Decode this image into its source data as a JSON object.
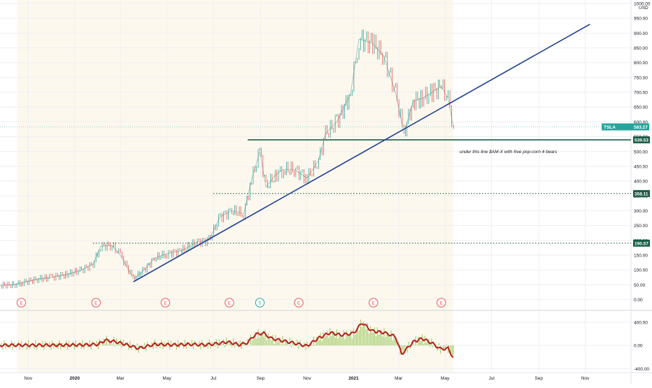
{
  "chart_data": {
    "type": "line",
    "symbol": "TSLA",
    "currency": "USD",
    "price_axis": {
      "range": [
        -20,
        1000
      ],
      "ticks": [
        0,
        50,
        100,
        150,
        200,
        250,
        300,
        350,
        400,
        450,
        500,
        550,
        600,
        650,
        700,
        750,
        800,
        850,
        900,
        950,
        1000
      ],
      "tick_labels": [
        "0.00",
        "50.00",
        "100.00",
        "150.00",
        "200.00",
        "250.00",
        "300.00",
        "350.00",
        "400.00",
        "450.00",
        "500.00",
        "550.00",
        "600.00",
        "650.00",
        "700.00",
        "750.00",
        "800.00",
        "850.00",
        "900.00",
        "950.00",
        "1000.00"
      ]
    },
    "time_axis": {
      "labels": [
        "Nov",
        "2020",
        "Mar",
        "May",
        "Jul",
        "Sep",
        "Nov",
        "2021",
        "Mar",
        "May",
        "Jul",
        "Sep",
        "Nov"
      ],
      "label_dates": [
        "2019-11-01",
        "2020-01-01",
        "2020-03-01",
        "2020-05-01",
        "2020-07-01",
        "2020-09-01",
        "2020-11-01",
        "2021-01-01",
        "2021-03-01",
        "2021-05-01",
        "2021-07-01",
        "2021-09-01",
        "2021-11-01"
      ],
      "range": [
        "2019-09-25",
        "2021-12-31"
      ]
    },
    "price_series": {
      "name": "TSLA",
      "dates": [
        "2019-09-25",
        "2019-10-15",
        "2019-10-25",
        "2019-11-15",
        "2019-12-01",
        "2019-12-20",
        "2020-01-10",
        "2020-01-25",
        "2020-02-04",
        "2020-02-19",
        "2020-03-01",
        "2020-03-18",
        "2020-04-01",
        "2020-04-15",
        "2020-05-01",
        "2020-05-20",
        "2020-06-10",
        "2020-06-25",
        "2020-07-10",
        "2020-07-25",
        "2020-08-10",
        "2020-08-20",
        "2020-08-31",
        "2020-09-08",
        "2020-09-20",
        "2020-10-01",
        "2020-10-15",
        "2020-11-01",
        "2020-11-16",
        "2020-11-25",
        "2020-12-10",
        "2020-12-28",
        "2021-01-08",
        "2021-01-26",
        "2021-02-10",
        "2021-02-25",
        "2021-03-08",
        "2021-03-20",
        "2021-04-01",
        "2021-04-14",
        "2021-04-26",
        "2021-05-05",
        "2021-05-12"
      ],
      "values": [
        48,
        51,
        58,
        70,
        75,
        84,
        100,
        120,
        180,
        183,
        150,
        70,
        100,
        140,
        155,
        165,
        195,
        200,
        280,
        300,
        290,
        405,
        500,
        380,
        420,
        440,
        440,
        410,
        470,
        560,
        600,
        695,
        880,
        865,
        820,
        700,
        560,
        670,
        680,
        700,
        720,
        680,
        580
      ]
    },
    "current_price": {
      "label": "TSLA",
      "value": "583.27"
    },
    "horizontal_levels": [
      {
        "value": 539.53,
        "label": "539.53",
        "style": "solid",
        "color": "#1b5e46",
        "start_date": "2020-08-15"
      },
      {
        "value": 358.11,
        "label": "358.11",
        "style": "dotted",
        "color": "#1b5e46",
        "start_date": "2020-07-01"
      },
      {
        "value": 190.57,
        "label": "190.57",
        "style": "dotted",
        "color": "#1b5e46",
        "start_date": "2020-01-25"
      }
    ],
    "trendline": {
      "color": "#1c3f94",
      "points": [
        [
          "2020-03-18",
          60
        ],
        [
          "2021-11-07",
          930
        ]
      ]
    },
    "annotation": {
      "text": "under this line $AM-X with free pop-corn 4 bears",
      "date": "2021-05-20",
      "value": 495
    },
    "earnings_events": [
      {
        "date": "2019-10-23",
        "label": "E"
      },
      {
        "date": "2020-01-29",
        "label": "E"
      },
      {
        "date": "2020-04-29",
        "label": "E"
      },
      {
        "date": "2020-07-22",
        "label": "E"
      },
      {
        "date": "2020-08-31",
        "label": "S"
      },
      {
        "date": "2020-10-21",
        "label": "E"
      },
      {
        "date": "2021-01-27",
        "label": "E"
      },
      {
        "date": "2021-04-26",
        "label": "E"
      }
    ],
    "oscillator": {
      "range": [
        -430,
        530
      ],
      "ticks": [
        -400,
        0,
        400
      ],
      "tick_labels": [
        "-400.00",
        "0.00",
        "400.00"
      ],
      "dates": [
        "2019-09-25",
        "2019-12-01",
        "2020-01-15",
        "2020-02-01",
        "2020-02-10",
        "2020-02-25",
        "2020-03-10",
        "2020-03-25",
        "2020-04-15",
        "2020-05-10",
        "2020-06-01",
        "2020-06-20",
        "2020-07-05",
        "2020-07-20",
        "2020-08-05",
        "2020-08-15",
        "2020-08-25",
        "2020-09-05",
        "2020-09-15",
        "2020-09-30",
        "2020-10-15",
        "2020-11-01",
        "2020-11-15",
        "2020-12-01",
        "2020-12-15",
        "2021-01-01",
        "2021-01-12",
        "2021-01-25",
        "2021-02-10",
        "2021-02-25",
        "2021-03-05",
        "2021-03-20",
        "2021-04-01",
        "2021-04-15",
        "2021-04-25",
        "2021-05-05",
        "2021-05-12"
      ],
      "values": [
        5,
        5,
        10,
        20,
        90,
        60,
        10,
        -50,
        20,
        10,
        20,
        10,
        30,
        60,
        10,
        50,
        190,
        210,
        120,
        80,
        40,
        -10,
        120,
        220,
        180,
        210,
        390,
        250,
        220,
        150,
        -150,
        60,
        120,
        30,
        -60,
        -50,
        -220
      ],
      "histogram_color": "#8bc34a",
      "line_color": "#b71c1c"
    }
  }
}
